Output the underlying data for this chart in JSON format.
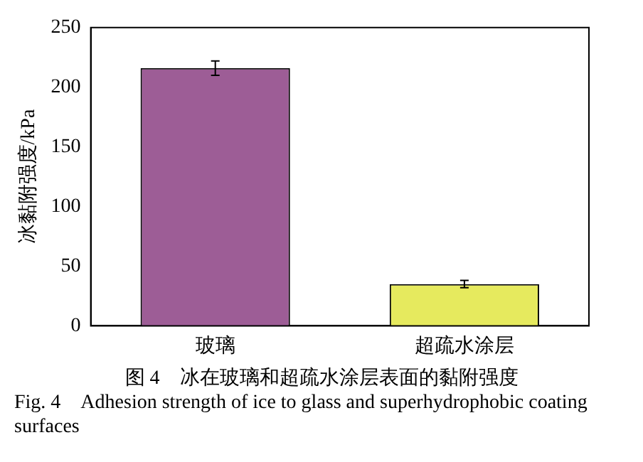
{
  "chart_data": {
    "type": "bar",
    "ylabel": "冰黏附强度/kPa",
    "categories": [
      "玻璃",
      "超疏水涂层"
    ],
    "values": [
      216,
      35
    ],
    "errors": [
      6,
      3
    ],
    "colors": [
      "#9d5d96",
      "#e6ea5e"
    ],
    "ylim": [
      0,
      250
    ],
    "yticks": [
      0,
      50,
      100,
      150,
      200,
      250
    ],
    "grid": false,
    "legend": false,
    "annotations": [
      "图 4　冰在玻璃和超疏水涂层表面的黏附强度",
      "Fig. 4　Adhesion strength of ice to glass and superhydrophobic coating surfaces"
    ]
  }
}
